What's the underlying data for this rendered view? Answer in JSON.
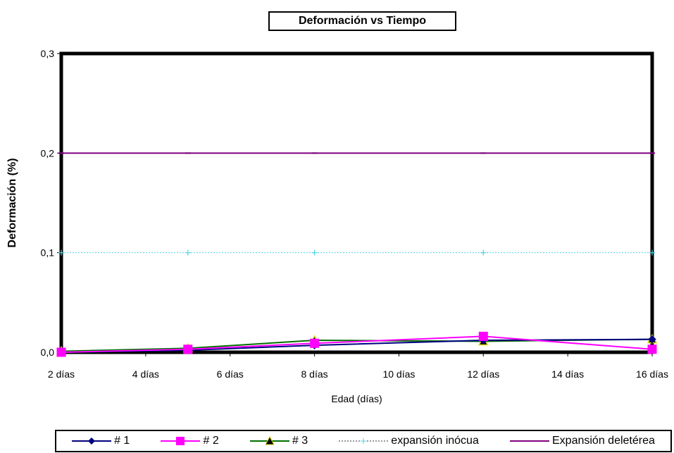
{
  "chart_data": {
    "type": "line",
    "title": "Deformación vs Tiempo",
    "xlabel": "Edad (días)",
    "ylabel": "Deformación (%)",
    "x_ticks": [
      "2 días",
      "4 días",
      "6 días",
      "8 días",
      "10 días",
      "12 días",
      "14 días",
      "16 días"
    ],
    "xlim": [
      2,
      16
    ],
    "y_ticks": [
      "0,0",
      "0,1",
      "0,2",
      "0,3"
    ],
    "ylim": [
      0,
      0.3
    ],
    "grid": false,
    "legend_position": "bottom",
    "series": [
      {
        "name": "# 1",
        "color": "#000080",
        "marker": "diamond",
        "dash": "",
        "x": [
          2,
          5,
          8,
          12,
          16
        ],
        "y": [
          0.0,
          0.002,
          0.007,
          0.012,
          0.013
        ]
      },
      {
        "name": "# 2",
        "color": "#ff00ff",
        "marker": "square",
        "dash": "",
        "x": [
          2,
          5,
          8,
          12,
          16
        ],
        "y": [
          0.0,
          0.003,
          0.009,
          0.016,
          0.003
        ]
      },
      {
        "name": "# 3",
        "color": "#007000",
        "marker": "triangle",
        "dash": "",
        "x": [
          2,
          5,
          8,
          12,
          16
        ],
        "y": [
          0.001,
          0.004,
          0.012,
          0.011,
          0.013
        ]
      },
      {
        "name": "expansión inócua",
        "color": "#4dd2e6",
        "marker": "plus",
        "dash": "2,2",
        "x": [
          2,
          5,
          8,
          12,
          16
        ],
        "y": [
          0.1,
          0.1,
          0.1,
          0.1,
          0.1
        ]
      },
      {
        "name": "Expansión deletérea",
        "color": "#800080",
        "marker": "dash",
        "dash": "",
        "x": [
          2,
          5,
          8,
          12,
          16
        ],
        "y": [
          0.2,
          0.2,
          0.2,
          0.2,
          0.2
        ]
      }
    ]
  }
}
